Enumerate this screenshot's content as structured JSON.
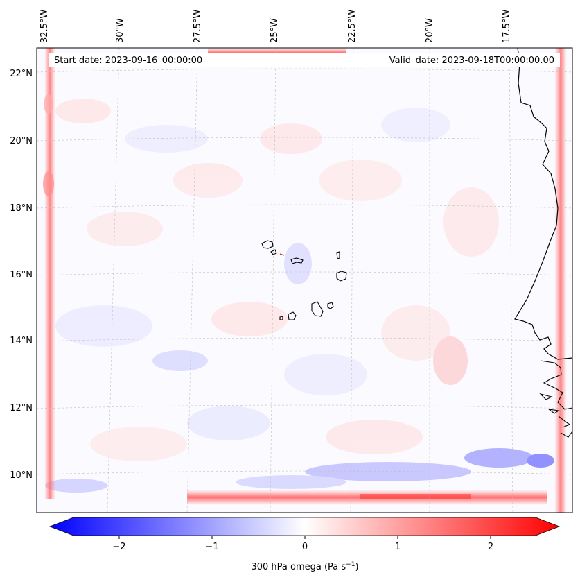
{
  "header": {
    "start_date": "Start date: 2023-09-16_00:00:00",
    "valid_date": "Valid_date: 2023-09-18T00:00:00.00"
  },
  "map": {
    "top_lon_labels": [
      "32.5°W",
      "30°W",
      "27.5°W",
      "25°W",
      "22.5°W",
      "20°W",
      "17.5°W"
    ],
    "left_lat_labels": [
      "22°N",
      "20°N",
      "18°N",
      "16°N",
      "14°N",
      "12°N",
      "10°N"
    ],
    "field": "300 hPa omega",
    "region": "Cabo Verde and West African coast"
  },
  "colorbar": {
    "label_main": "300 hPa omega (Pa s",
    "label_exp": "−1",
    "label_close": ")",
    "ticks": [
      "−2",
      "−1",
      "0",
      "1",
      "2"
    ],
    "range": [
      -2.5,
      2.5
    ],
    "cmap": "bwr",
    "colors": {
      "low": "#0000ff",
      "mid": "#ffffff",
      "high": "#ff0000"
    }
  }
}
